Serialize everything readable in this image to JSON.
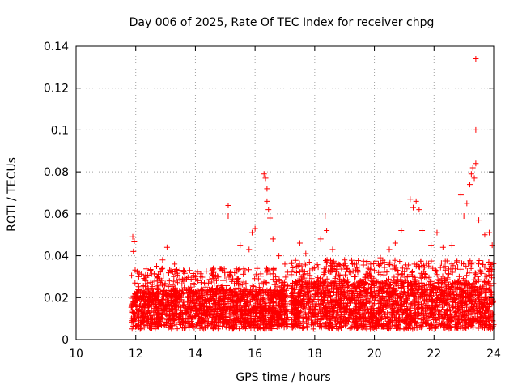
{
  "chart_data": {
    "type": "scatter",
    "title": "Day 006 of 2025, Rate Of TEC Index for receiver chpg",
    "xlabel": "GPS time / hours",
    "ylabel": "ROTI / TECUs",
    "xlim": [
      10,
      24
    ],
    "ylim": [
      0,
      0.14
    ],
    "xticks": [
      10,
      12,
      14,
      16,
      18,
      20,
      22,
      24
    ],
    "yticks": [
      0,
      0.02,
      0.04,
      0.06,
      0.08,
      0.1,
      0.12,
      0.14
    ],
    "xtick_labels": [
      "10",
      "12",
      "14",
      "16",
      "18",
      "20",
      "22",
      "24"
    ],
    "ytick_labels": [
      "0",
      "0.02",
      "0.04",
      "0.06",
      "0.08",
      "0.1",
      "0.12",
      "0.14"
    ],
    "grid": true,
    "marker": "+",
    "series": [
      {
        "name": "ROTI",
        "color": "#ff0000",
        "bands": [
          {
            "x_start": 11.85,
            "x_end": 17.1,
            "y_low": 0.008,
            "y_high": 0.024
          },
          {
            "x_start": 17.2,
            "x_end": 24.0,
            "y_low": 0.008,
            "y_high": 0.028
          }
        ],
        "points": [
          {
            "x": 11.9,
            "y": 0.049
          },
          {
            "x": 11.95,
            "y": 0.047
          },
          {
            "x": 11.92,
            "y": 0.042
          },
          {
            "x": 12.1,
            "y": 0.03
          },
          {
            "x": 12.3,
            "y": 0.029
          },
          {
            "x": 12.7,
            "y": 0.035
          },
          {
            "x": 12.9,
            "y": 0.038
          },
          {
            "x": 13.05,
            "y": 0.044
          },
          {
            "x": 13.3,
            "y": 0.036
          },
          {
            "x": 13.6,
            "y": 0.033
          },
          {
            "x": 14.0,
            "y": 0.03
          },
          {
            "x": 14.3,
            "y": 0.027
          },
          {
            "x": 14.6,
            "y": 0.034
          },
          {
            "x": 14.9,
            "y": 0.033
          },
          {
            "x": 15.1,
            "y": 0.064
          },
          {
            "x": 15.1,
            "y": 0.059
          },
          {
            "x": 15.5,
            "y": 0.045
          },
          {
            "x": 15.8,
            "y": 0.043
          },
          {
            "x": 15.9,
            "y": 0.051
          },
          {
            "x": 16.0,
            "y": 0.053
          },
          {
            "x": 16.3,
            "y": 0.079
          },
          {
            "x": 16.35,
            "y": 0.077
          },
          {
            "x": 16.4,
            "y": 0.072
          },
          {
            "x": 16.4,
            "y": 0.066
          },
          {
            "x": 16.45,
            "y": 0.062
          },
          {
            "x": 16.5,
            "y": 0.058
          },
          {
            "x": 16.6,
            "y": 0.048
          },
          {
            "x": 16.8,
            "y": 0.04
          },
          {
            "x": 17.0,
            "y": 0.036
          },
          {
            "x": 17.5,
            "y": 0.046
          },
          {
            "x": 17.7,
            "y": 0.041
          },
          {
            "x": 18.2,
            "y": 0.048
          },
          {
            "x": 18.35,
            "y": 0.059
          },
          {
            "x": 18.4,
            "y": 0.052
          },
          {
            "x": 18.6,
            "y": 0.043
          },
          {
            "x": 19.0,
            "y": 0.038
          },
          {
            "x": 19.4,
            "y": 0.036
          },
          {
            "x": 19.8,
            "y": 0.034
          },
          {
            "x": 20.2,
            "y": 0.039
          },
          {
            "x": 20.5,
            "y": 0.043
          },
          {
            "x": 20.7,
            "y": 0.046
          },
          {
            "x": 20.9,
            "y": 0.052
          },
          {
            "x": 21.2,
            "y": 0.067
          },
          {
            "x": 21.3,
            "y": 0.063
          },
          {
            "x": 21.4,
            "y": 0.066
          },
          {
            "x": 21.5,
            "y": 0.062
          },
          {
            "x": 21.6,
            "y": 0.052
          },
          {
            "x": 21.9,
            "y": 0.045
          },
          {
            "x": 22.1,
            "y": 0.051
          },
          {
            "x": 22.3,
            "y": 0.044
          },
          {
            "x": 22.6,
            "y": 0.045
          },
          {
            "x": 22.9,
            "y": 0.069
          },
          {
            "x": 23.0,
            "y": 0.059
          },
          {
            "x": 23.1,
            "y": 0.065
          },
          {
            "x": 23.2,
            "y": 0.074
          },
          {
            "x": 23.25,
            "y": 0.079
          },
          {
            "x": 23.3,
            "y": 0.082
          },
          {
            "x": 23.35,
            "y": 0.077
          },
          {
            "x": 23.4,
            "y": 0.084
          },
          {
            "x": 23.4,
            "y": 0.1
          },
          {
            "x": 23.4,
            "y": 0.134
          },
          {
            "x": 23.5,
            "y": 0.057
          },
          {
            "x": 23.7,
            "y": 0.05
          },
          {
            "x": 23.85,
            "y": 0.051
          },
          {
            "x": 23.95,
            "y": 0.045
          }
        ]
      }
    ]
  }
}
